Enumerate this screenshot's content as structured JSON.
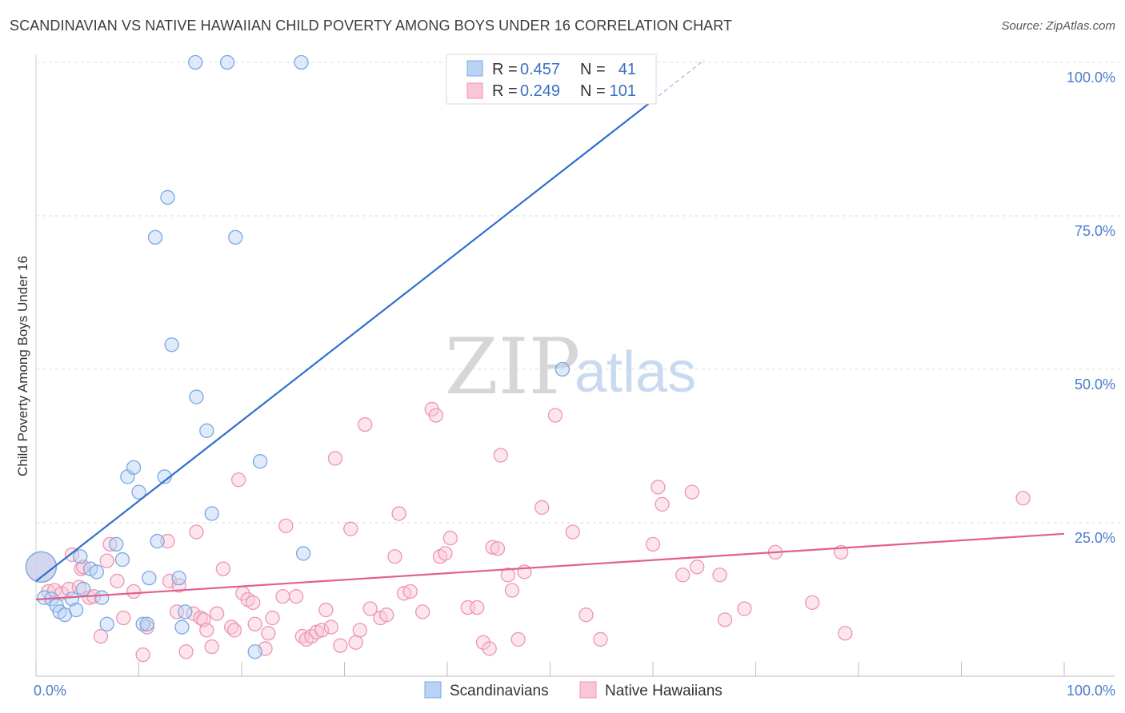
{
  "title": "SCANDINAVIAN VS NATIVE HAWAIIAN CHILD POVERTY AMONG BOYS UNDER 16 CORRELATION CHART",
  "source": "Source: ZipAtlas.com",
  "watermark": {
    "zip": "ZIP",
    "atlas": "atlas"
  },
  "colors": {
    "blue_fill": "#b8d3f3",
    "blue_stroke": "#7aa8e0",
    "blue_line": "#2f6fd0",
    "pink_fill": "#f8c6d6",
    "pink_stroke": "#ee95b2",
    "pink_line": "#e0608f",
    "grid": "#dcdcdc"
  },
  "legend": {
    "rows": [
      {
        "r_label": "R =",
        "r_value": "0.457",
        "n_label": "N =",
        "n_value": "41",
        "series": "Scandinavians"
      },
      {
        "r_label": "R =",
        "r_value": "0.249",
        "n_label": "N =",
        "n_value": "101",
        "series": "Native Hawaiians"
      }
    ]
  },
  "chart_data": {
    "type": "scatter",
    "title": "SCANDINAVIAN VS NATIVE HAWAIIAN CHILD POVERTY AMONG BOYS UNDER 16 CORRELATION CHART",
    "xlabel": "",
    "ylabel": "Child Poverty Among Boys Under 16",
    "xlim": [
      0,
      100
    ],
    "ylim": [
      0,
      100
    ],
    "x_tick_labels": [
      "0.0%",
      "100.0%"
    ],
    "y_tick_labels": [
      {
        "value": 25,
        "label": "25.0%"
      },
      {
        "value": 50,
        "label": "50.0%"
      },
      {
        "value": 75,
        "label": "75.0%"
      },
      {
        "value": 100,
        "label": "100.0%"
      }
    ],
    "legend_position": "top-center",
    "series": [
      {
        "name": "Scandinavians",
        "color": "#b8d3f3",
        "trend": {
          "x0": 0,
          "y0": 15.5,
          "x1": 60,
          "y1": 93.8,
          "dash_to_x": 65,
          "dash_to_y": 100.4
        },
        "points": [
          [
            0.5,
            17.8,
            "big"
          ],
          [
            0.8,
            12.8
          ],
          [
            1.5,
            12.6
          ],
          [
            2.0,
            11.5
          ],
          [
            2.3,
            10.5
          ],
          [
            2.8,
            10.0
          ],
          [
            3.5,
            12.6
          ],
          [
            3.9,
            10.8
          ],
          [
            4.3,
            19.5
          ],
          [
            4.6,
            14.2
          ],
          [
            5.3,
            17.5
          ],
          [
            5.9,
            17.0
          ],
          [
            6.4,
            12.8
          ],
          [
            6.9,
            8.5
          ],
          [
            7.8,
            21.5
          ],
          [
            8.4,
            19.0
          ],
          [
            8.9,
            32.5
          ],
          [
            9.5,
            34.0
          ],
          [
            10.0,
            30.0
          ],
          [
            10.4,
            8.5
          ],
          [
            10.8,
            8.5
          ],
          [
            11.0,
            16.0
          ],
          [
            11.6,
            71.5
          ],
          [
            11.8,
            22.0
          ],
          [
            12.5,
            32.5
          ],
          [
            12.8,
            78.0
          ],
          [
            13.2,
            54.0
          ],
          [
            13.9,
            16.0
          ],
          [
            14.2,
            8.0
          ],
          [
            14.5,
            10.5
          ],
          [
            15.5,
            100.0
          ],
          [
            15.6,
            45.5
          ],
          [
            16.6,
            40.0
          ],
          [
            17.1,
            26.5
          ],
          [
            18.6,
            100.0
          ],
          [
            19.4,
            71.5
          ],
          [
            21.3,
            4.0
          ],
          [
            21.8,
            35.0
          ],
          [
            25.8,
            100.0
          ],
          [
            26.0,
            20.0
          ],
          [
            51.2,
            50.0
          ]
        ]
      },
      {
        "name": "Native Hawaiians",
        "color": "#f8c6d6",
        "trend": {
          "x0": 0,
          "y0": 12.5,
          "x1": 100,
          "y1": 23.2
        },
        "points": [
          [
            0.5,
            17.8,
            "big"
          ],
          [
            1.2,
            13.8
          ],
          [
            1.8,
            14.0
          ],
          [
            2.5,
            13.5
          ],
          [
            3.2,
            14.2
          ],
          [
            3.5,
            19.8
          ],
          [
            4.2,
            14.5
          ],
          [
            4.4,
            17.5
          ],
          [
            4.6,
            17.8
          ],
          [
            5.2,
            12.8
          ],
          [
            5.6,
            13.0
          ],
          [
            6.3,
            6.5
          ],
          [
            6.9,
            18.8
          ],
          [
            7.2,
            21.5
          ],
          [
            7.9,
            15.5
          ],
          [
            8.5,
            9.5
          ],
          [
            9.5,
            13.8
          ],
          [
            10.4,
            3.5
          ],
          [
            10.8,
            8.0
          ],
          [
            12.8,
            22.0
          ],
          [
            13.0,
            15.5
          ],
          [
            13.7,
            10.5
          ],
          [
            13.9,
            14.8
          ],
          [
            14.6,
            4.0
          ],
          [
            15.3,
            10.2
          ],
          [
            15.6,
            23.5
          ],
          [
            16.0,
            9.5
          ],
          [
            16.3,
            9.2
          ],
          [
            16.6,
            7.5
          ],
          [
            17.1,
            4.8
          ],
          [
            17.6,
            10.2
          ],
          [
            18.2,
            17.5
          ],
          [
            19.0,
            8.0
          ],
          [
            19.3,
            7.5
          ],
          [
            19.7,
            32.0
          ],
          [
            20.1,
            13.5
          ],
          [
            20.6,
            12.5
          ],
          [
            21.1,
            12.0
          ],
          [
            21.3,
            8.5
          ],
          [
            22.3,
            4.5
          ],
          [
            22.6,
            7.0
          ],
          [
            23.0,
            9.5
          ],
          [
            24.0,
            13.0
          ],
          [
            24.3,
            24.5
          ],
          [
            25.3,
            13.0
          ],
          [
            25.9,
            6.5
          ],
          [
            26.3,
            6.0
          ],
          [
            26.8,
            6.5
          ],
          [
            27.3,
            7.2
          ],
          [
            27.8,
            7.5
          ],
          [
            28.2,
            10.8
          ],
          [
            28.7,
            8.0
          ],
          [
            29.1,
            35.5
          ],
          [
            29.6,
            5.0
          ],
          [
            30.6,
            24.0
          ],
          [
            31.1,
            5.5
          ],
          [
            31.5,
            7.5
          ],
          [
            32.0,
            41.0
          ],
          [
            32.5,
            11.0
          ],
          [
            33.5,
            9.5
          ],
          [
            34.1,
            10.0
          ],
          [
            34.9,
            19.5
          ],
          [
            35.3,
            26.5
          ],
          [
            35.8,
            13.5
          ],
          [
            36.4,
            13.8
          ],
          [
            37.6,
            10.5
          ],
          [
            38.5,
            43.5
          ],
          [
            38.9,
            42.5
          ],
          [
            39.3,
            19.5
          ],
          [
            39.8,
            20.0
          ],
          [
            40.3,
            22.5
          ],
          [
            42.0,
            11.2
          ],
          [
            42.9,
            11.2
          ],
          [
            43.5,
            5.5
          ],
          [
            44.1,
            4.5
          ],
          [
            44.4,
            21.0
          ],
          [
            44.9,
            20.8
          ],
          [
            45.2,
            36.0
          ],
          [
            45.9,
            16.5
          ],
          [
            46.3,
            14.0
          ],
          [
            46.9,
            6.0
          ],
          [
            47.5,
            17.0
          ],
          [
            49.2,
            27.5
          ],
          [
            50.5,
            42.5
          ],
          [
            52.2,
            23.5
          ],
          [
            53.5,
            10.0
          ],
          [
            54.9,
            6.0
          ],
          [
            60.0,
            21.5
          ],
          [
            60.5,
            30.8
          ],
          [
            60.9,
            28.0
          ],
          [
            62.9,
            16.5
          ],
          [
            63.8,
            30.0
          ],
          [
            64.3,
            17.8
          ],
          [
            66.5,
            16.5
          ],
          [
            67.0,
            9.2
          ],
          [
            68.9,
            11.0
          ],
          [
            71.9,
            20.2
          ],
          [
            75.5,
            12.0
          ],
          [
            78.3,
            20.2
          ],
          [
            78.7,
            7.0
          ],
          [
            96.0,
            29.0
          ]
        ]
      }
    ]
  },
  "bottom_legend": [
    {
      "label": "Scandinavians"
    },
    {
      "label": "Native Hawaiians"
    }
  ]
}
